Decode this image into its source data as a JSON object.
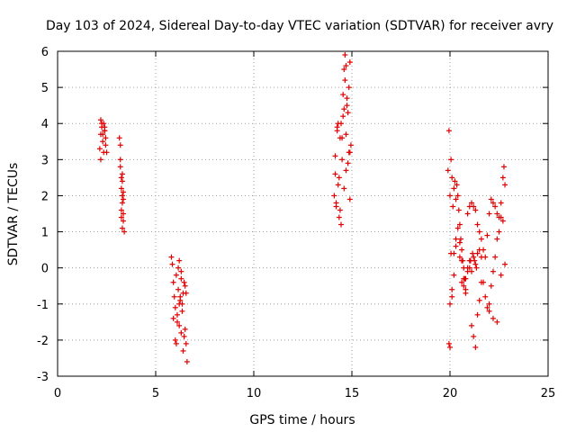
{
  "chart_data": {
    "type": "scatter",
    "title": "Day 103 of 2024, Sidereal Day-to-day VTEC variation (SDTVAR) for receiver avry",
    "xlabel": "GPS time / hours",
    "ylabel": "SDTVAR / TECUs",
    "xlim": [
      0,
      25
    ],
    "ylim": [
      -3,
      6
    ],
    "grid": true,
    "marker": "+",
    "marker_color": "#e00000",
    "xticks": [
      "0",
      "5",
      "10",
      "15",
      "20",
      "25"
    ],
    "yticks": [
      "-3",
      "-2",
      "-1",
      "0",
      "1",
      "2",
      "3",
      "4",
      "5",
      "6"
    ],
    "series": [
      {
        "name": "SDTVAR",
        "x": [
          2.15,
          2.2,
          2.25,
          2.3,
          2.35,
          2.4,
          2.45,
          2.2,
          2.3,
          2.4,
          2.25,
          2.35,
          2.45,
          2.4,
          2.2,
          2.5,
          3.15,
          3.2,
          3.2,
          3.25,
          3.25,
          3.3,
          3.3,
          3.35,
          3.35,
          3.25,
          3.3,
          3.2,
          3.3,
          3.35,
          3.4,
          3.3,
          3.25,
          3.35,
          5.8,
          5.85,
          5.9,
          5.95,
          6.0,
          6.05,
          6.1,
          6.15,
          6.2,
          6.25,
          6.3,
          6.35,
          6.4,
          6.45,
          6.5,
          6.55,
          6.6,
          6.0,
          6.1,
          6.2,
          6.3,
          6.4,
          6.5,
          5.9,
          6.05,
          6.15,
          6.25,
          6.35,
          6.45,
          6.55,
          6.2,
          6.3,
          14.1,
          14.15,
          14.2,
          14.25,
          14.3,
          14.35,
          14.4,
          14.45,
          14.5,
          14.55,
          14.6,
          14.65,
          14.7,
          14.75,
          14.8,
          14.85,
          14.9,
          14.95,
          14.6,
          14.7,
          14.8,
          14.9,
          14.5,
          14.4,
          14.3,
          14.2,
          14.15,
          14.25,
          14.35,
          14.45,
          14.55,
          14.65,
          14.75,
          14.85,
          14.9,
          14.7,
          14.6,
          19.9,
          19.95,
          20.0,
          20.05,
          20.1,
          20.15,
          20.2,
          20.25,
          20.3,
          20.35,
          20.4,
          20.45,
          20.5,
          20.55,
          20.6,
          20.65,
          20.7,
          20.75,
          20.8,
          20.9,
          21.0,
          21.1,
          21.2,
          21.3,
          21.4,
          21.5,
          21.6,
          21.7,
          21.8,
          21.9,
          22.0,
          22.1,
          22.2,
          22.3,
          22.4,
          22.5,
          22.6,
          22.7,
          22.75,
          22.8,
          20.0,
          20.1,
          20.2,
          20.3,
          20.4,
          20.5,
          20.6,
          20.7,
          20.8,
          20.9,
          21.0,
          21.1,
          21.2,
          21.3,
          21.4,
          21.5,
          21.6,
          21.7,
          21.8,
          21.9,
          22.0,
          22.1,
          22.2,
          22.3,
          22.4,
          22.5,
          22.6,
          22.7,
          20.0,
          20.1,
          20.2,
          20.3,
          20.5,
          20.6,
          20.7,
          20.8,
          20.9,
          21.0,
          21.1,
          21.2,
          21.3,
          21.4,
          21.5,
          21.6,
          22.0,
          22.2,
          22.4,
          22.6,
          22.8,
          19.95,
          20.05,
          21.05,
          21.15,
          21.25,
          21.35
        ],
        "y": [
          3.3,
          4.1,
          3.9,
          3.7,
          4.0,
          3.8,
          3.6,
          3.0,
          3.5,
          3.9,
          4.0,
          3.2,
          3.4,
          3.8,
          3.7,
          3.2,
          3.6,
          3.4,
          2.8,
          2.5,
          2.2,
          2.0,
          1.8,
          1.5,
          1.3,
          1.6,
          2.4,
          3.0,
          1.1,
          1.9,
          1.0,
          2.6,
          1.4,
          2.1,
          0.3,
          0.1,
          -0.4,
          -0.8,
          -1.1,
          -0.2,
          -1.3,
          -0.6,
          -1.6,
          -0.9,
          -0.3,
          -1.2,
          -0.7,
          -1.9,
          -0.5,
          -2.1,
          -2.6,
          -2.0,
          -1.5,
          -1.0,
          -0.1,
          -2.3,
          -1.7,
          -1.4,
          -2.1,
          0.0,
          -0.8,
          -1.0,
          -0.4,
          -0.7,
          0.2,
          -1.8,
          2.0,
          3.1,
          1.8,
          3.9,
          4.0,
          2.5,
          1.6,
          1.2,
          3.6,
          4.2,
          5.5,
          5.9,
          5.6,
          4.7,
          4.3,
          3.2,
          5.7,
          3.4,
          2.2,
          2.7,
          2.9,
          1.9,
          3.0,
          3.6,
          2.3,
          1.7,
          2.6,
          3.8,
          1.4,
          4.0,
          4.8,
          5.2,
          4.5,
          5.0,
          3.2,
          3.7,
          4.4,
          2.7,
          3.8,
          2.0,
          3.0,
          2.5,
          1.7,
          2.2,
          2.4,
          1.9,
          2.3,
          2.0,
          1.6,
          1.2,
          0.8,
          0.5,
          0.2,
          0.0,
          -0.3,
          -0.6,
          1.5,
          1.7,
          1.8,
          1.7,
          1.6,
          1.2,
          1.0,
          0.8,
          0.5,
          0.3,
          0.9,
          1.5,
          1.9,
          1.8,
          1.7,
          1.5,
          1.4,
          1.8,
          2.5,
          2.8,
          2.3,
          -1.0,
          -0.6,
          0.4,
          0.8,
          1.1,
          0.7,
          0.2,
          -0.3,
          -0.7,
          0.0,
          0.2,
          -0.1,
          0.3,
          0.1,
          0.4,
          0.5,
          0.3,
          -0.4,
          -0.8,
          -1.1,
          -1.0,
          -0.5,
          -0.1,
          0.3,
          0.8,
          1.0,
          1.4,
          1.3,
          -2.2,
          -0.8,
          -0.2,
          0.6,
          0.3,
          -0.4,
          -0.5,
          -0.3,
          -0.1,
          0.0,
          -1.6,
          -1.9,
          -2.2,
          -1.3,
          -0.9,
          -0.4,
          -1.2,
          -1.4,
          -1.5,
          -0.2,
          0.1,
          -2.1,
          0.4,
          0.2,
          0.4,
          0.2,
          0.0
        ]
      }
    ]
  }
}
